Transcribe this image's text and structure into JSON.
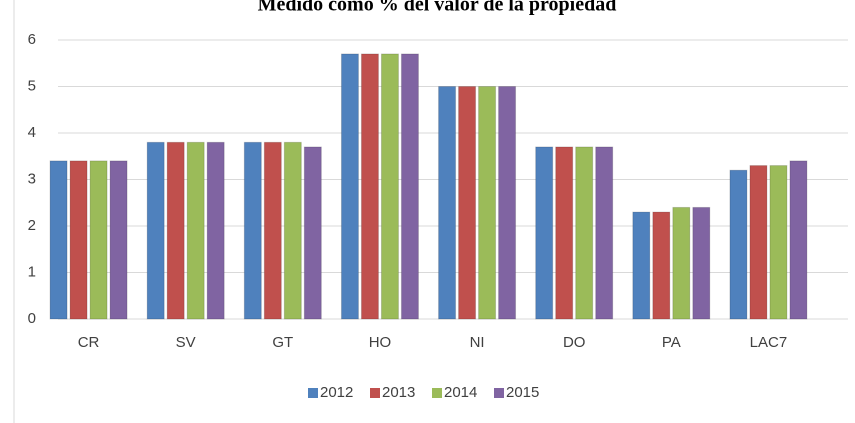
{
  "chart_data": {
    "type": "bar",
    "title": "Medido como % del valor de la propiedad",
    "categories": [
      "CR",
      "SV",
      "GT",
      "HO",
      "NI",
      "DO",
      "PA",
      "LAC7"
    ],
    "series": [
      {
        "name": "2012",
        "color": "#4f81bd",
        "values": [
          3.4,
          3.8,
          3.8,
          5.7,
          5.0,
          3.7,
          2.3,
          3.2
        ]
      },
      {
        "name": "2013",
        "color": "#c0504d",
        "values": [
          3.4,
          3.8,
          3.8,
          5.7,
          5.0,
          3.7,
          2.3,
          3.3
        ]
      },
      {
        "name": "2014",
        "color": "#9bbb59",
        "values": [
          3.4,
          3.8,
          3.8,
          5.7,
          5.0,
          3.7,
          2.4,
          3.3
        ]
      },
      {
        "name": "2015",
        "color": "#8064a2",
        "values": [
          3.4,
          3.8,
          3.7,
          5.7,
          5.0,
          3.7,
          2.4,
          3.4
        ]
      }
    ],
    "ylim": [
      0,
      6
    ],
    "yticks": [
      0,
      1,
      2,
      3,
      4,
      5,
      6
    ],
    "grid": true,
    "legend": "bottom"
  }
}
